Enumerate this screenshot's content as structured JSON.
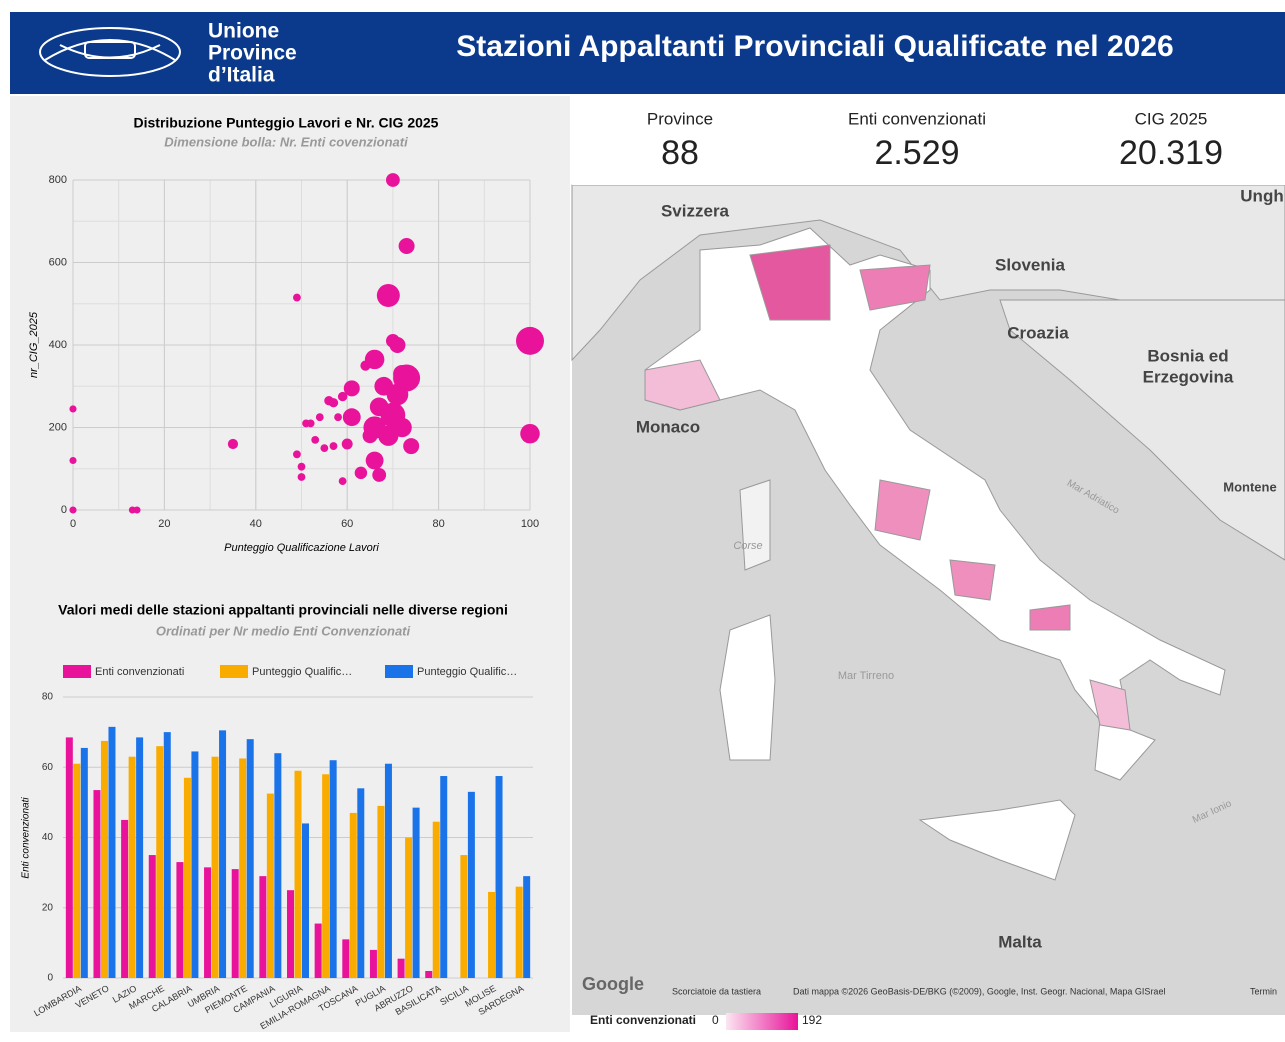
{
  "header": {
    "logo_lines": [
      "Unione",
      "Province",
      "d’Italia"
    ],
    "title": "Stazioni Appaltanti Provinciali Qualificate nel 2026"
  },
  "kpis": [
    {
      "label": "Province",
      "value": "88"
    },
    {
      "label": "Enti convenzionati",
      "value": "2.529"
    },
    {
      "label": "CIG 2025",
      "value": "20.319"
    }
  ],
  "chart_data": [
    {
      "type": "scatter",
      "title": "Distribuzione Punteggio Lavori e Nr. CIG 2025",
      "subtitle": "Dimensione bolla: Nr. Enti covenzionati",
      "x_label": "Punteggio Qualificazione Lavori",
      "y_label": "nr_CIG_2025",
      "color": "#e8139a",
      "x": [
        0,
        0,
        0,
        13,
        14,
        35,
        49,
        49,
        50,
        50,
        51,
        52,
        53,
        54,
        55,
        56,
        57,
        57,
        58,
        59,
        59,
        60,
        61,
        61,
        63,
        64,
        65,
        66,
        66,
        66,
        67,
        67,
        68,
        69,
        69,
        70,
        70,
        70,
        71,
        71,
        72,
        72,
        73,
        73,
        74,
        100,
        100
      ],
      "y": [
        0,
        120,
        245,
        0,
        0,
        160,
        515,
        135,
        105,
        80,
        210,
        210,
        170,
        225,
        150,
        265,
        155,
        260,
        225,
        70,
        275,
        160,
        295,
        225,
        90,
        350,
        180,
        365,
        120,
        200,
        85,
        250,
        300,
        180,
        520,
        410,
        800,
        230,
        400,
        280,
        330,
        200,
        640,
        320,
        155,
        410,
        185
      ],
      "sizes": [
        2,
        2,
        2,
        2,
        2,
        8,
        3,
        3,
        3,
        3,
        3,
        3,
        3,
        3,
        3,
        6,
        3,
        6,
        3,
        3,
        6,
        10,
        30,
        40,
        15,
        8,
        25,
        50,
        40,
        70,
        20,
        45,
        45,
        55,
        75,
        20,
        20,
        90,
        30,
        65,
        40,
        50,
        30,
        110,
        30,
        120,
        50
      ],
      "xlim": [
        0,
        100
      ],
      "xticks": [
        0,
        20,
        40,
        60,
        80,
        100
      ],
      "ylim": [
        0,
        800
      ],
      "yticks": [
        0,
        200,
        400,
        600,
        800
      ],
      "grid": true
    },
    {
      "type": "bar",
      "title": "Valori medi delle stazioni appaltanti provinciali nelle diverse regioni",
      "subtitle": "Ordinati per Nr medio Enti Convenzionati",
      "y_label": "Enti convenzionati",
      "categories": [
        "LOMBARDIA",
        "VENETO",
        "LAZIO",
        "MARCHE",
        "CALABRIA",
        "UMBRIA",
        "PIEMONTE",
        "CAMPANIA",
        "LIGURIA",
        "EMILIA-ROMAGNA",
        "TOSCANA",
        "PUGLIA",
        "ABRUZZO",
        "BASILICATA",
        "SICILIA",
        "MOLISE",
        "SARDEGNA"
      ],
      "series": [
        {
          "name": "Enti convenzionati",
          "color": "#e8139a",
          "values": [
            68.5,
            53.5,
            45,
            35,
            33,
            31.5,
            31,
            29,
            25,
            15.5,
            11,
            8,
            5.5,
            2,
            0,
            0,
            0
          ]
        },
        {
          "name": "Punteggio Qualific…",
          "color": "#f9ab00",
          "values": [
            61,
            67.5,
            63,
            66,
            57,
            63,
            62.5,
            52.5,
            59,
            58,
            47,
            49,
            40,
            44.5,
            35,
            24.5,
            26
          ]
        },
        {
          "name": "Punteggio Qualific…",
          "color": "#1a73e8",
          "values": [
            65.5,
            71.5,
            68.5,
            70,
            64.5,
            70.5,
            68,
            64,
            44,
            62,
            54,
            61,
            48.5,
            57.5,
            53,
            57.5,
            29
          ]
        }
      ],
      "ylim": [
        0,
        80
      ],
      "yticks": [
        0,
        20,
        40,
        60,
        80
      ],
      "grid": true
    }
  ],
  "map": {
    "labels": [
      "Svizzera",
      "Slovenia",
      "Croazia",
      "Bosnia ed",
      "Erzegovina",
      "Monaco",
      "Corse",
      "Mar Tirreno",
      "Mar Adriatico",
      "Malta",
      "Mar Ionio",
      "Ungh",
      "Montene"
    ],
    "google": "Google",
    "shortcut": "Scorciatoie da tastiera",
    "attribution": "Dati mappa ©2026 GeoBasis-DE/BKG (©2009), Google, Inst. Geogr. Nacional, Mapa GISrael",
    "terms": "Termin",
    "legend": {
      "title": "Enti convenzionati",
      "min": 0,
      "max": 192
    }
  }
}
